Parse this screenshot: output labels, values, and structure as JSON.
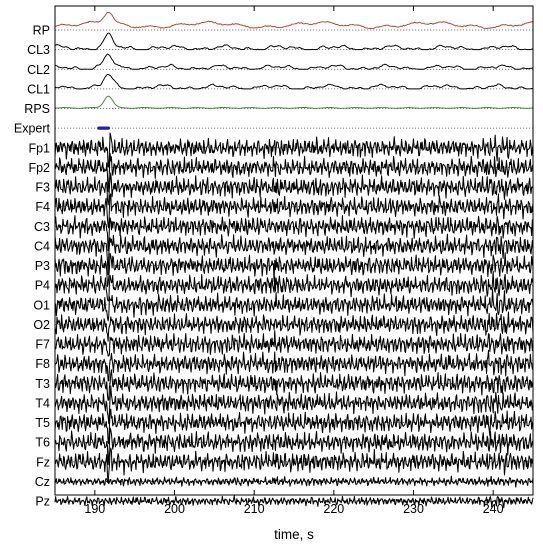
{
  "chart_data": {
    "type": "line",
    "title": "",
    "xlabel": "time, s",
    "ylabel": "",
    "xlim": [
      185,
      245
    ],
    "xticks": [
      190,
      200,
      210,
      220,
      230,
      240
    ],
    "grid": false,
    "expert_annotation": {
      "channel": "Expert",
      "start": 190.5,
      "end": 191.7,
      "color": "#1f1fb4"
    },
    "series": [
      {
        "name": "RP",
        "kind": "score",
        "color": "#b5412f"
      },
      {
        "name": "CL3",
        "kind": "score",
        "color": "#000000"
      },
      {
        "name": "CL2",
        "kind": "score",
        "color": "#000000"
      },
      {
        "name": "CL1",
        "kind": "score",
        "color": "#000000"
      },
      {
        "name": "RPS",
        "kind": "score",
        "color": "#3a8a2f"
      },
      {
        "name": "Expert",
        "kind": "annotation",
        "color": "#1f1fb4"
      },
      {
        "name": "Fp1",
        "kind": "eeg",
        "color": "#000000"
      },
      {
        "name": "Fp2",
        "kind": "eeg",
        "color": "#000000"
      },
      {
        "name": "F3",
        "kind": "eeg",
        "color": "#000000"
      },
      {
        "name": "F4",
        "kind": "eeg",
        "color": "#000000"
      },
      {
        "name": "C3",
        "kind": "eeg",
        "color": "#000000"
      },
      {
        "name": "C4",
        "kind": "eeg",
        "color": "#000000"
      },
      {
        "name": "P3",
        "kind": "eeg",
        "color": "#000000"
      },
      {
        "name": "P4",
        "kind": "eeg",
        "color": "#000000"
      },
      {
        "name": "O1",
        "kind": "eeg",
        "color": "#000000"
      },
      {
        "name": "O2",
        "kind": "eeg",
        "color": "#000000"
      },
      {
        "name": "F7",
        "kind": "eeg",
        "color": "#000000"
      },
      {
        "name": "F8",
        "kind": "eeg",
        "color": "#000000"
      },
      {
        "name": "T3",
        "kind": "eeg",
        "color": "#000000"
      },
      {
        "name": "T4",
        "kind": "eeg",
        "color": "#000000"
      },
      {
        "name": "T5",
        "kind": "eeg",
        "color": "#000000"
      },
      {
        "name": "T6",
        "kind": "eeg",
        "color": "#000000"
      },
      {
        "name": "Fz",
        "kind": "eeg",
        "color": "#000000"
      },
      {
        "name": "Cz",
        "kind": "eeg",
        "color": "#000000"
      },
      {
        "name": "Pz",
        "kind": "eeg",
        "color": "#000000"
      }
    ]
  }
}
